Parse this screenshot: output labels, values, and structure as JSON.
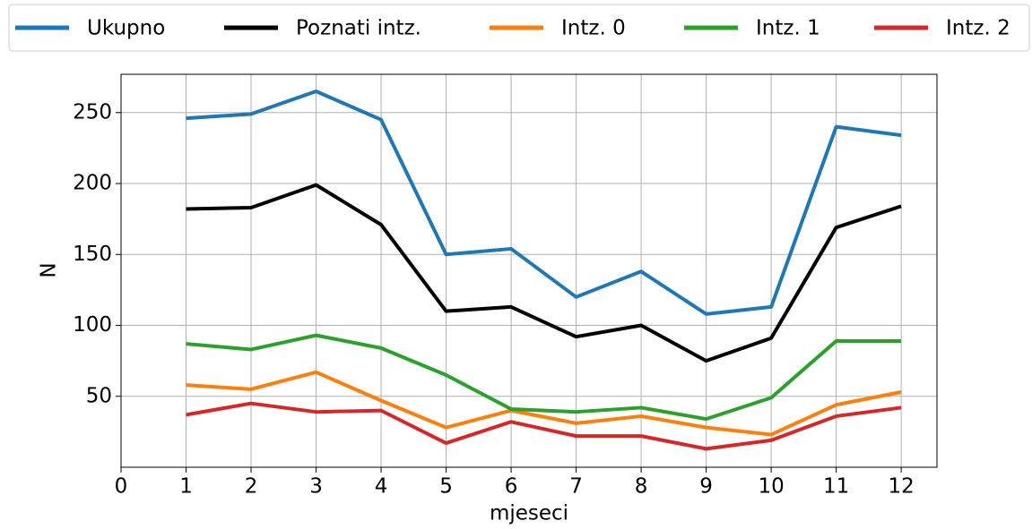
{
  "chart_data": {
    "type": "line",
    "xlabel": "mjeseci",
    "ylabel": "N",
    "x": [
      1,
      2,
      3,
      4,
      5,
      6,
      7,
      8,
      9,
      10,
      11,
      12
    ],
    "series": [
      {
        "name": "Ukupno",
        "color": "#1f77b4",
        "values": [
          246,
          249,
          265,
          245,
          150,
          154,
          120,
          138,
          108,
          113,
          240,
          234
        ]
      },
      {
        "name": "Poznati intz.",
        "color": "#000000",
        "values": [
          182,
          183,
          199,
          171,
          110,
          113,
          92,
          100,
          75,
          91,
          169,
          184
        ]
      },
      {
        "name": "Intz. 0",
        "color": "#ff7f0e",
        "values": [
          58,
          55,
          67,
          47,
          28,
          40,
          31,
          36,
          28,
          23,
          44,
          53
        ]
      },
      {
        "name": "Intz. 1",
        "color": "#2ca02c",
        "values": [
          87,
          83,
          93,
          84,
          65,
          41,
          39,
          42,
          34,
          49,
          89,
          89
        ]
      },
      {
        "name": "Intz. 2",
        "color": "#d62728",
        "values": [
          37,
          45,
          39,
          40,
          17,
          32,
          22,
          22,
          13,
          19,
          36,
          42
        ]
      }
    ],
    "xlim": [
      0,
      12.55
    ],
    "xticks": [
      0,
      1,
      2,
      3,
      4,
      5,
      6,
      7,
      8,
      9,
      10,
      11,
      12
    ],
    "ylim": [
      0,
      277
    ],
    "yticks": [
      50,
      100,
      150,
      200,
      250
    ],
    "grid": true,
    "legend": "top"
  }
}
